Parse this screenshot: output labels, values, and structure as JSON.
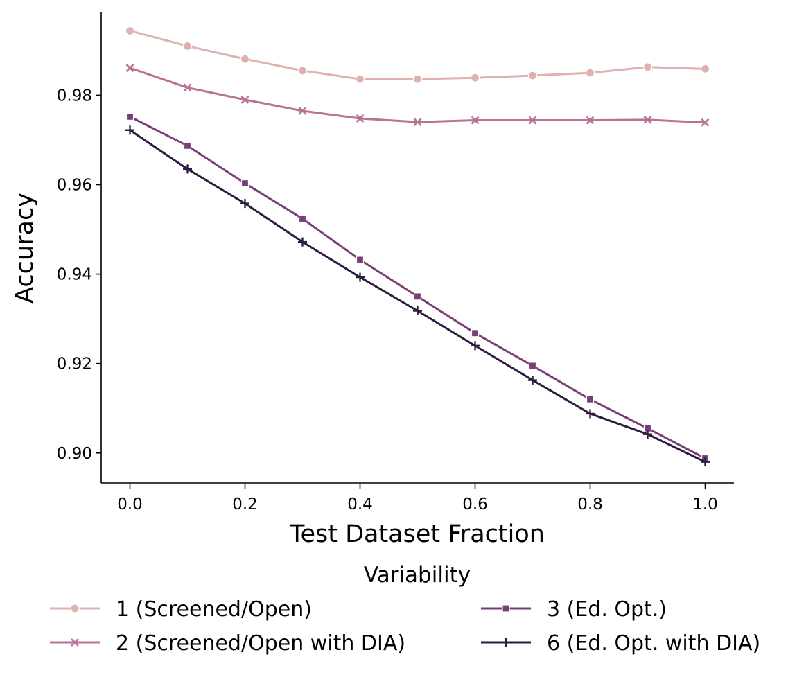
{
  "chart_data": {
    "type": "line",
    "xlabel": "Test Dataset Fraction",
    "ylabel": "Accuracy",
    "x": [
      0.0,
      0.1,
      0.2,
      0.3,
      0.4,
      0.5,
      0.6,
      0.7,
      0.8,
      0.9,
      1.0
    ],
    "xlim": [
      -0.05,
      1.05
    ],
    "ylim": [
      0.8933,
      0.9985
    ],
    "xticks": [
      0.0,
      0.2,
      0.4,
      0.6,
      0.8,
      1.0
    ],
    "xtick_labels": [
      "0.0",
      "0.2",
      "0.4",
      "0.6",
      "0.8",
      "1.0"
    ],
    "yticks": [
      0.9,
      0.92,
      0.94,
      0.96,
      0.98
    ],
    "ytick_labels": [
      "0.90",
      "0.92",
      "0.94",
      "0.96",
      "0.98"
    ],
    "grid": false,
    "legend": {
      "title": "Variability",
      "placement": "bottom"
    },
    "series": [
      {
        "name": "1 (Screened/Open)",
        "color": "#e0b1ae",
        "marker": "circle",
        "values": [
          0.9944,
          0.991,
          0.9881,
          0.9855,
          0.9836,
          0.9836,
          0.9839,
          0.9844,
          0.985,
          0.9863,
          0.9859
        ]
      },
      {
        "name": "2 (Screened/Open with DIA)",
        "color": "#b77295",
        "marker": "x",
        "values": [
          0.9861,
          0.9817,
          0.979,
          0.9765,
          0.9748,
          0.974,
          0.9744,
          0.9744,
          0.9744,
          0.9745,
          0.9739
        ]
      },
      {
        "name": "3 (Ed. Opt.)",
        "color": "#7a3e77",
        "marker": "square",
        "values": [
          0.9752,
          0.9687,
          0.9603,
          0.9524,
          0.9432,
          0.935,
          0.9268,
          0.9195,
          0.912,
          0.9055,
          0.8988
        ]
      },
      {
        "name": "6 (Ed. Opt. with DIA)",
        "color": "#2c1c3d",
        "marker": "plus",
        "values": [
          0.9722,
          0.9635,
          0.9558,
          0.9472,
          0.9393,
          0.9318,
          0.924,
          0.9163,
          0.9088,
          0.9042,
          0.898
        ]
      }
    ]
  }
}
